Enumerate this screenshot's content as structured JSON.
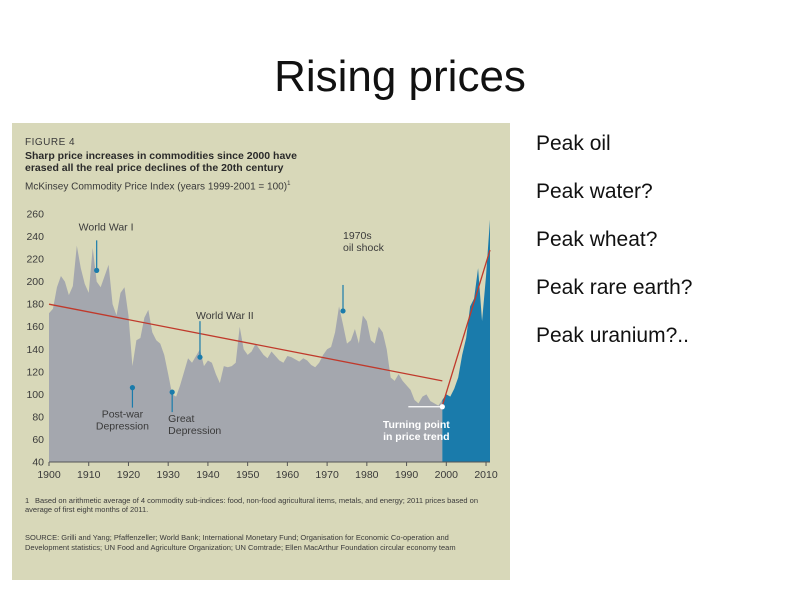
{
  "slide": {
    "title": "Rising prices"
  },
  "figure": {
    "label": "FIGURE 4",
    "heading_line1": "Sharp price increases in commodities since 2000 have",
    "heading_line2": "erased all the real price declines of the 20th century",
    "subtitle": "McKinsey Commodity Price Index (years 1999-2001 = 100)",
    "subtitle_sup": "1",
    "footnote_num": "1",
    "footnote": "Based on arithmetic average of 4 commodity sub-indices: food, non-food agricultural items, metals, and energy; 2011 prices based on average of first eight months of 2011.",
    "source": "SOURCE: Grilli and Yang; Pfaffenzeller; World Bank; International Monetary Fund; Organisation for Economic Co-operation and Development statistics; UN Food and Agriculture Organization; UN Comtrade; Ellen MacArthur Foundation circular economy team"
  },
  "colors": {
    "panel": "#d8d8b9",
    "area_20th": "#a4a7ae",
    "area_21st": "#1a7bab",
    "trend": "#c0392b",
    "marker": "#1a7bab",
    "text": "#3a3a3a"
  },
  "bullets": [
    "Peak oil",
    "Peak water?",
    "Peak wheat?",
    "Peak rare earth?",
    "Peak uranium?.."
  ],
  "chart_data": {
    "type": "area",
    "xlim": [
      1900,
      2011
    ],
    "ylim": [
      40,
      260
    ],
    "xticks": [
      1900,
      1910,
      1920,
      1930,
      1940,
      1950,
      1960,
      1970,
      1980,
      1990,
      2000,
      2010
    ],
    "yticks": [
      40,
      60,
      80,
      100,
      120,
      140,
      160,
      180,
      200,
      220,
      240,
      260
    ],
    "series": [
      {
        "x": [
          1900,
          1901,
          1902,
          1903,
          1904,
          1905,
          1906,
          1907,
          1908,
          1909,
          1910,
          1911,
          1912,
          1913,
          1914,
          1915,
          1916,
          1917,
          1918,
          1919,
          1920,
          1921,
          1922,
          1923,
          1924,
          1925,
          1926,
          1927,
          1928,
          1929,
          1930,
          1931,
          1932,
          1933,
          1934,
          1935,
          1936,
          1937,
          1938,
          1939,
          1940,
          1941,
          1942,
          1943,
          1944,
          1945,
          1946,
          1947,
          1948,
          1949,
          1950,
          1951,
          1952,
          1953,
          1954,
          1955,
          1956,
          1957,
          1958,
          1959,
          1960,
          1961,
          1962,
          1963,
          1964,
          1965,
          1966,
          1967,
          1968,
          1969,
          1970,
          1971,
          1972,
          1973,
          1974,
          1975,
          1976,
          1977,
          1978,
          1979,
          1980,
          1981,
          1982,
          1983,
          1984,
          1985,
          1986,
          1987,
          1988,
          1989,
          1990,
          1991,
          1992,
          1993,
          1994,
          1995,
          1996,
          1997,
          1998,
          1999
        ],
        "y": [
          172,
          176,
          195,
          205,
          200,
          188,
          196,
          232,
          212,
          198,
          190,
          230,
          200,
          195,
          205,
          215,
          180,
          170,
          190,
          195,
          170,
          125,
          148,
          150,
          168,
          175,
          155,
          148,
          145,
          135,
          118,
          100,
          98,
          108,
          120,
          132,
          128,
          134,
          140,
          125,
          130,
          128,
          118,
          110,
          125,
          124,
          125,
          128,
          160,
          140,
          135,
          138,
          145,
          140,
          135,
          132,
          138,
          134,
          130,
          128,
          134,
          133,
          131,
          129,
          132,
          130,
          126,
          124,
          128,
          135,
          140,
          142,
          155,
          178,
          162,
          145,
          148,
          158,
          145,
          170,
          165,
          148,
          145,
          160,
          155,
          140,
          115,
          112,
          118,
          112,
          108,
          104,
          95,
          92,
          98,
          100,
          94,
          92,
          90,
          95
        ]
      },
      {
        "x": [
          1999,
          2000,
          2001,
          2002,
          2003,
          2004,
          2005,
          2006,
          2007,
          2008,
          2009,
          2010,
          2011
        ],
        "y": [
          95,
          100,
          98,
          105,
          115,
          135,
          150,
          178,
          185,
          212,
          165,
          205,
          255
        ]
      }
    ],
    "trend_lines": [
      {
        "from": [
          1900,
          180
        ],
        "to": [
          1999,
          112
        ]
      },
      {
        "from": [
          1999,
          90
        ],
        "to": [
          2011,
          228
        ]
      }
    ],
    "annotations": [
      {
        "text": "World War I",
        "x": 1912,
        "y": 210
      },
      {
        "text": "Post-war",
        "text2": "Depression",
        "x": 1921,
        "y": 106
      },
      {
        "text": "Great",
        "text2": "Depression",
        "x": 1931,
        "y": 102
      },
      {
        "text": "World War II",
        "x": 1938,
        "y": 133
      },
      {
        "text": "1970s",
        "text2": "oil shock",
        "x": 1974,
        "y": 174
      },
      {
        "text": "Turning point",
        "text2": "in price trend",
        "x": 1999,
        "y": 89
      }
    ]
  }
}
